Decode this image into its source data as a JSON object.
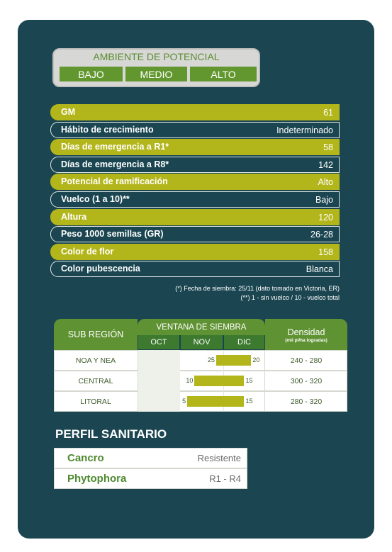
{
  "ambiente": {
    "title": "AMBIENTE DE POTENCIAL",
    "options": [
      "BAJO",
      "MEDIO",
      "ALTO"
    ]
  },
  "specs": [
    {
      "label": "GM",
      "value": "61"
    },
    {
      "label": "Hábito de crecimiento",
      "value": "Indeterminado"
    },
    {
      "label": "Días de emergencia a R1*",
      "value": "58"
    },
    {
      "label": "Días de emergencia a R8*",
      "value": "142"
    },
    {
      "label": "Potencial de ramificación",
      "value": "Alto"
    },
    {
      "label": "Vuelco (1 a 10)**",
      "value": "Bajo"
    },
    {
      "label": "Altura",
      "value": "120"
    },
    {
      "label": "Peso 1000 semillas (GR)",
      "value": "26-28"
    },
    {
      "label": "Color de flor",
      "value": "158"
    },
    {
      "label": "Color pubescencia",
      "value": "Blanca"
    }
  ],
  "footnotes": [
    "(*) Fecha de siembra: 25/11 (dato tomado en Victoria, ER)",
    "(**) 1 - sin vuelco / 10 - vuelco total"
  ],
  "table": {
    "headers": {
      "region": "SUB REGIÓN",
      "window": "VENTANA DE SIEMBRA",
      "months": [
        "OCT",
        "NOV",
        "DIC"
      ],
      "density": "Densidad",
      "density_unit": "(mil pl/ha logradas)"
    },
    "rows": [
      {
        "region": "NOA Y NEA",
        "start": 25,
        "end": 20,
        "density": "240 - 280"
      },
      {
        "region": "CENTRAL",
        "start": 10,
        "end": 15,
        "density": "300 - 320"
      },
      {
        "region": "LITORAL",
        "start": 5,
        "end": 15,
        "density": "280 - 320"
      }
    ]
  },
  "sanitario": {
    "title": "PERFIL SANITARIO",
    "rows": [
      {
        "disease": "Cancro",
        "value": "Resistente"
      },
      {
        "disease": "Phytophora",
        "value": "R1 - R4"
      }
    ]
  }
}
